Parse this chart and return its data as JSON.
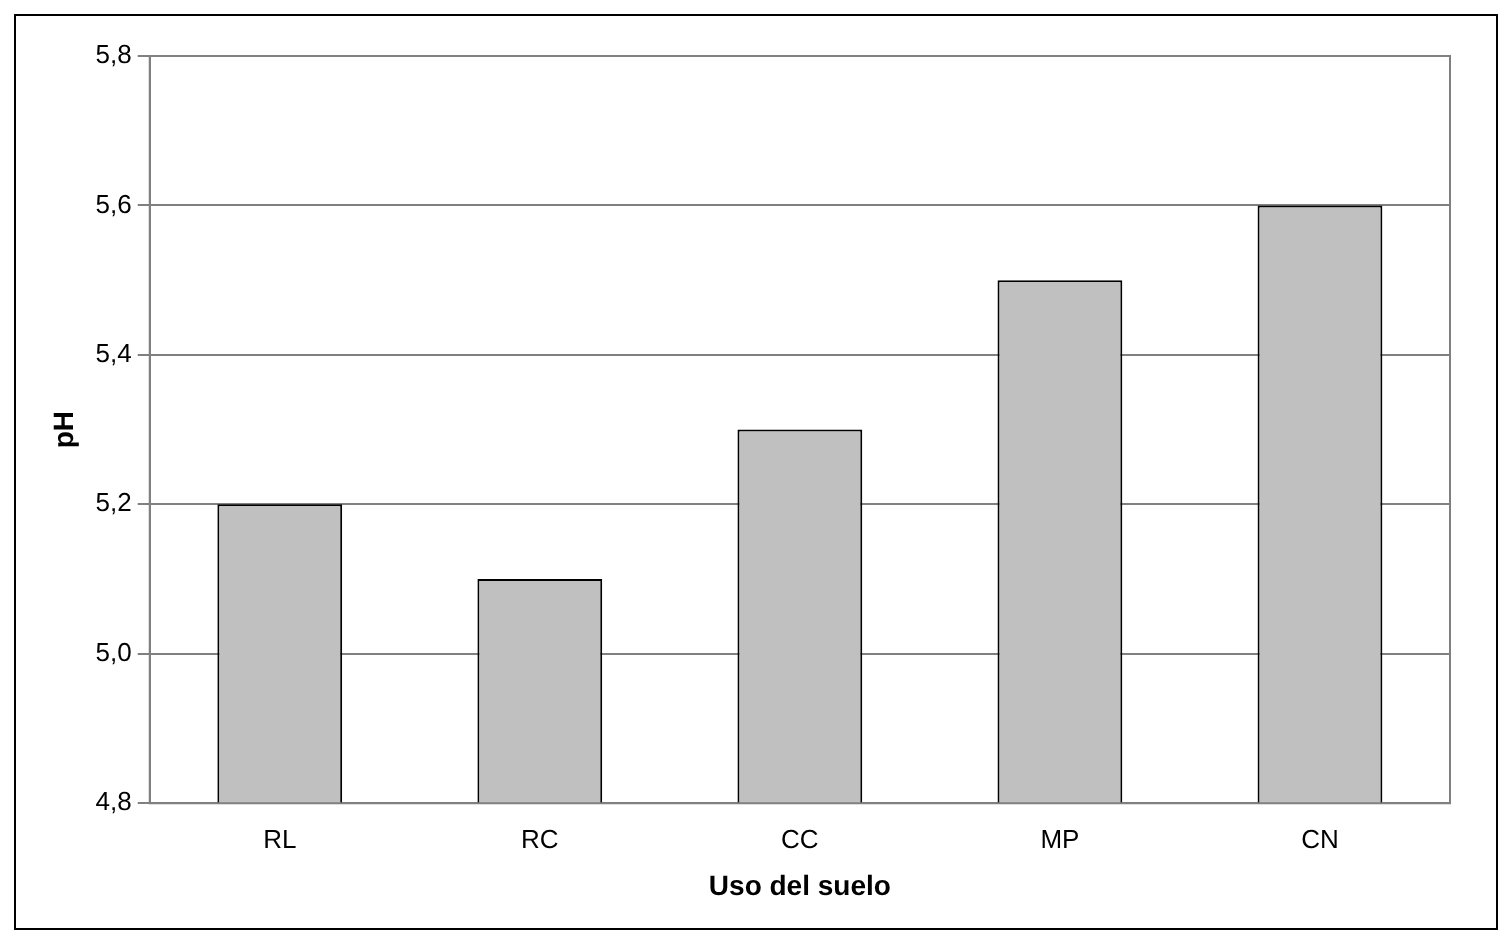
{
  "chart_data": {
    "type": "bar",
    "xlabel": "Uso del suelo",
    "ylabel": "pH",
    "categories": [
      "RL",
      "RC",
      "CC",
      "MP",
      "CN"
    ],
    "values": [
      5.2,
      5.1,
      5.3,
      5.5,
      5.6
    ],
    "color": "#c0c0c0",
    "ylim": [
      4.8,
      5.8
    ],
    "yticks": [
      {
        "value": 4.8,
        "label": "4,8"
      },
      {
        "value": 5.0,
        "label": "5,0"
      },
      {
        "value": 5.2,
        "label": "5,2"
      },
      {
        "value": 5.4,
        "label": "5,4"
      },
      {
        "value": 5.6,
        "label": "5,6"
      },
      {
        "value": 5.8,
        "label": "5,8"
      }
    ],
    "grid": "y",
    "legend": false
  }
}
